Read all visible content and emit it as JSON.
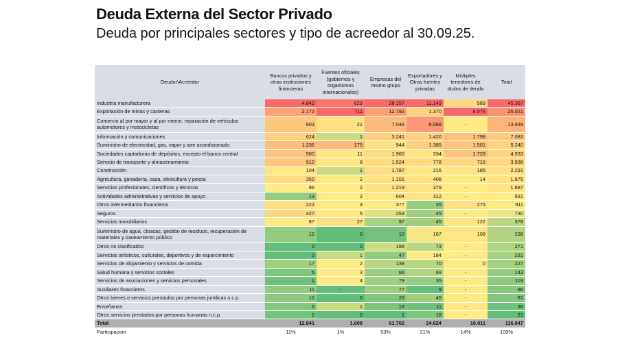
{
  "title": "Deuda Externa del Sector Privado",
  "subtitle": "Deuda por principales sectores y tipo de acreedor al 30.09.25.",
  "chart_data": {
    "type": "heatmap",
    "color_scale": {
      "low": "#63be7b",
      "mid": "#ffeb84",
      "high": "#f8696b"
    },
    "corner_header": "Deudor\\Acreedor",
    "columns": [
      "Bancos privados y otras instituciones financieras",
      "Fuentes oficiales (gobiernos y organismos internacionales)",
      "Empresas del mismo grupo",
      "Exportadores y Otras fuentes privadas",
      "Múltiples tenedores de títulos de deuda",
      "Total"
    ],
    "rows": [
      {
        "label": "Industria manufacturera",
        "values": [
          "4.842",
          "629",
          "28.157",
          "11.149",
          "589",
          "45.367"
        ]
      },
      {
        "label": "Explotación de minas y canteras",
        "values": [
          "2.172",
          "711",
          "12.792",
          "1.370",
          "8.976",
          "26.021"
        ]
      },
      {
        "label": "Comercio al por mayor y al por menor, reparación de vehículos automotores y motocicletas",
        "tall": true,
        "values": [
          "803",
          "21",
          "7.048",
          "6.068",
          "-",
          "13.939"
        ]
      },
      {
        "label": "Información y comunicaciones",
        "values": [
          "624",
          "1",
          "3.241",
          "1.420",
          "1.798",
          "7.083"
        ]
      },
      {
        "label": "Suministro de electricidad, gas, vapor y aire acondicionado",
        "values": [
          "1.236",
          "175",
          "944",
          "1.385",
          "1.501",
          "5.240"
        ]
      },
      {
        "label": "Sociedades captadoras de depósitos, excepto el banco central",
        "values": [
          "900",
          "11",
          "1.960",
          "334",
          "1.728",
          "4.933"
        ]
      },
      {
        "label": "Servicio de transporte y almacenamiento",
        "values": [
          "912",
          "8",
          "1.524",
          "778",
          "716",
          "3.938"
        ]
      },
      {
        "label": "Construcción",
        "values": [
          "104",
          "1",
          "1.787",
          "216",
          "185",
          "2.291"
        ]
      },
      {
        "label": "Agricultura, ganadería, caza, silvicultura y pesca",
        "values": [
          "350",
          "2",
          "1.101",
          "408",
          "14",
          "1.875"
        ]
      },
      {
        "label": "Servicios profesionales, científicos y técnicos",
        "values": [
          "86",
          "2",
          "1.219",
          "379",
          "-",
          "1.687"
        ]
      },
      {
        "label": "Actividades administrativas y servicios de apoyo",
        "values": [
          "13",
          "2",
          "604",
          "312",
          "-",
          "931"
        ]
      },
      {
        "label": "Otros intermediarios financieros",
        "values": [
          "222",
          "3",
          "377",
          "35",
          "275",
          "911"
        ]
      },
      {
        "label": "Seguros",
        "values": [
          "427",
          "5",
          "253",
          "45",
          "-",
          "730"
        ]
      },
      {
        "label": "Servicios inmobiliarios",
        "values": [
          "87",
          "27",
          "97",
          "45",
          "122",
          "378"
        ]
      },
      {
        "label": "Suministro de agua, cloacas, gestión de residuos, recuperación de materiales y saneamiento público",
        "tall": true,
        "values": [
          "12",
          "0",
          "10",
          "167",
          "108",
          "298"
        ]
      },
      {
        "label": "Otros no clasificados",
        "values": [
          "0",
          "0",
          "198",
          "73",
          "-",
          "271"
        ]
      },
      {
        "label": "Servicios artísticos, culturales, deportivos y de esparcimiento",
        "values": [
          "0",
          "1",
          "47",
          "184",
          "-",
          "231"
        ]
      },
      {
        "label": "Servicios de alojamiento y servicios de comida",
        "values": [
          "17",
          "2",
          "138",
          "70",
          "0",
          "227"
        ]
      },
      {
        "label": "Salud humana y servicios sociales",
        "values": [
          "5",
          "3",
          "66",
          "69",
          "-",
          "143"
        ]
      },
      {
        "label": "Servicios de asociaciones y servicios personales",
        "values": [
          "1",
          "4",
          "79",
          "35",
          "-",
          "119"
        ]
      },
      {
        "label": "Auxiliares financieros",
        "values": [
          "11",
          "-",
          "77",
          "9",
          "-",
          "96"
        ]
      },
      {
        "label": "Otros bienes o servicios prestados por personas jurídicas n.c.p.",
        "values": [
          "10",
          "0",
          "26",
          "45",
          "-",
          "81"
        ]
      },
      {
        "label": "Enseñanza",
        "values": [
          "6",
          "1",
          "18",
          "11",
          "-",
          "36"
        ]
      },
      {
        "label": "Otros servicios prestados por personas humanas n.c.p.",
        "values": [
          "2",
          "0",
          "1",
          "18",
          "-",
          "21"
        ]
      }
    ],
    "total": {
      "label": "Total",
      "values": [
        "12.841",
        "1.608",
        "61.762",
        "24.624",
        "16.011",
        "116.847"
      ]
    },
    "share": {
      "label": "Participación",
      "values": [
        "11%",
        "1%",
        "53%",
        "21%",
        "14%",
        "100%"
      ]
    }
  }
}
